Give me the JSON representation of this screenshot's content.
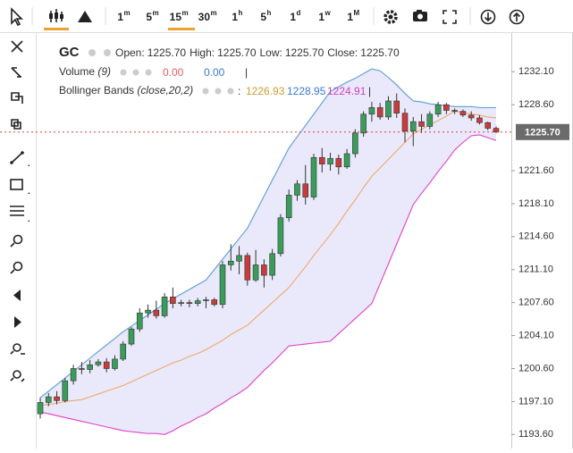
{
  "toolbar": {
    "timeframes": [
      {
        "num": "1",
        "unit": "m"
      },
      {
        "num": "5",
        "unit": "m"
      },
      {
        "num": "15",
        "unit": "m"
      },
      {
        "num": "30",
        "unit": "m"
      },
      {
        "num": "1",
        "unit": "h"
      },
      {
        "num": "5",
        "unit": "h"
      },
      {
        "num": "1",
        "unit": "d"
      },
      {
        "num": "1",
        "unit": "w"
      },
      {
        "num": "1",
        "unit": "M"
      }
    ],
    "active_timeframe": 2
  },
  "legend": {
    "symbol": "GC",
    "ohlc": [
      {
        "label": "Open:",
        "value": "1225.70"
      },
      {
        "label": "High:",
        "value": "1225.70"
      },
      {
        "label": "Low:",
        "value": "1225.70"
      },
      {
        "label": "Close:",
        "value": "1225.70"
      }
    ],
    "volume": {
      "name": "Volume",
      "params": "(9)",
      "values": [
        "0.00",
        "0.00"
      ],
      "separator": "|"
    },
    "bollinger": {
      "name": "Bollinger Bands",
      "params": "(close,20,2)",
      "values": [
        "1226.93",
        "1228.95",
        "1224.91"
      ],
      "separator": "|"
    }
  },
  "chart_data": {
    "type": "candlestick",
    "ylim": [
      1192.3,
      1236.3
    ],
    "yticks": [
      {
        "value": 1232.1,
        "label": "1232.10"
      },
      {
        "value": 1228.6,
        "label": "1228.60"
      },
      {
        "value": 1221.6,
        "label": "1221.60"
      },
      {
        "value": 1218.1,
        "label": "1218.10"
      },
      {
        "value": 1214.6,
        "label": "1214.60"
      },
      {
        "value": 1211.1,
        "label": "1211.10"
      },
      {
        "value": 1207.6,
        "label": "1207.60"
      },
      {
        "value": 1204.1,
        "label": "1204.10"
      },
      {
        "value": 1200.6,
        "label": "1200.60"
      },
      {
        "value": 1197.1,
        "label": "1197.10"
      },
      {
        "value": 1193.6,
        "label": "1193.60"
      }
    ],
    "last_price": {
      "value": 1225.7,
      "label": "1225.70",
      "color": "#e04040"
    },
    "up_color": "#3a9c5a",
    "down_color": "#c83c3c",
    "open": [
      1195.8,
      1197.0,
      1197.6,
      1197.2,
      1199.3,
      1200.6,
      1200.5,
      1201.0,
      1201.3,
      1200.6,
      1201.6,
      1203.2,
      1204.8,
      1206.5,
      1206.8,
      1206.2,
      1208.2,
      1207.5,
      1207.6,
      1207.5,
      1207.8,
      1207.9,
      1207.4,
      1211.6,
      1212.0,
      1212.6,
      1210.0,
      1211.6,
      1210.5,
      1212.8,
      1216.6,
      1219.0,
      1220.2,
      1218.8,
      1223.0,
      1222.3,
      1222.9,
      1222.0,
      1223.4,
      1225.6,
      1227.6,
      1228.3,
      1227.3,
      1229.0,
      1227.7,
      1225.8,
      1226.8,
      1226.3,
      1227.6,
      1228.6,
      1228.0,
      1227.9,
      1227.5,
      1227.2,
      1226.7,
      1226.1
    ],
    "high": [
      1197.5,
      1198.0,
      1198.2,
      1199.6,
      1201.0,
      1201.3,
      1201.5,
      1201.6,
      1201.7,
      1202.0,
      1203.5,
      1205.0,
      1207.0,
      1207.4,
      1207.8,
      1208.6,
      1209.2,
      1207.9,
      1207.9,
      1208.1,
      1208.2,
      1208.1,
      1212.0,
      1213.8,
      1213.6,
      1212.9,
      1213.2,
      1212.2,
      1213.3,
      1217.0,
      1219.6,
      1220.6,
      1222.2,
      1223.4,
      1224.0,
      1223.5,
      1223.3,
      1223.9,
      1226.0,
      1227.9,
      1228.9,
      1228.8,
      1229.5,
      1229.8,
      1228.2,
      1227.3,
      1227.6,
      1227.9,
      1228.9,
      1228.8,
      1228.2,
      1228.1,
      1227.9,
      1227.5,
      1226.8,
      1226.3
    ],
    "low": [
      1195.3,
      1196.6,
      1196.8,
      1197.0,
      1198.9,
      1200.0,
      1200.1,
      1200.8,
      1200.2,
      1200.4,
      1201.4,
      1203.0,
      1204.5,
      1206.0,
      1205.9,
      1206.0,
      1207.0,
      1207.2,
      1207.1,
      1207.2,
      1207.0,
      1207.2,
      1207.0,
      1211.0,
      1210.6,
      1209.4,
      1209.8,
      1209.2,
      1210.0,
      1212.5,
      1216.2,
      1218.4,
      1218.0,
      1218.5,
      1221.4,
      1221.6,
      1221.2,
      1221.8,
      1223.0,
      1225.2,
      1226.8,
      1227.0,
      1227.0,
      1227.2,
      1224.6,
      1224.2,
      1225.6,
      1226.0,
      1227.3,
      1227.6,
      1227.6,
      1227.3,
      1226.9,
      1226.5,
      1225.9,
      1225.6
    ],
    "close": [
      1197.0,
      1197.6,
      1197.2,
      1199.3,
      1200.6,
      1200.5,
      1201.0,
      1201.3,
      1200.6,
      1201.6,
      1203.2,
      1204.8,
      1206.5,
      1206.8,
      1206.2,
      1208.2,
      1207.5,
      1207.6,
      1207.5,
      1207.8,
      1207.9,
      1207.4,
      1211.6,
      1212.0,
      1212.6,
      1210.0,
      1211.6,
      1210.5,
      1212.8,
      1216.6,
      1219.0,
      1220.2,
      1218.8,
      1223.0,
      1222.3,
      1222.9,
      1222.0,
      1223.4,
      1225.6,
      1227.6,
      1228.3,
      1227.3,
      1229.0,
      1227.7,
      1225.8,
      1226.8,
      1226.3,
      1227.6,
      1228.6,
      1228.0,
      1227.9,
      1227.5,
      1227.2,
      1226.7,
      1226.1,
      1225.7
    ],
    "band_fill": "#e9e9fb",
    "series": [
      {
        "name": "upper",
        "color": "#5b9bd5",
        "values": [
          1197.5,
          1198.2,
          1198.9,
          1199.6,
          1200.3,
          1201.0,
          1201.7,
          1202.4,
          1203.1,
          1203.8,
          1204.5,
          1205.1,
          1205.7,
          1206.3,
          1206.9,
          1207.5,
          1208.0,
          1208.5,
          1209.0,
          1209.5,
          1210.0,
          1211.1,
          1212.2,
          1213.3,
          1214.4,
          1215.5,
          1217.2,
          1218.9,
          1220.6,
          1222.3,
          1224.0,
          1225.2,
          1226.4,
          1227.6,
          1228.8,
          1230.0,
          1230.5,
          1231.0,
          1231.4,
          1231.9,
          1232.4,
          1232.2,
          1231.5,
          1230.7,
          1229.8,
          1229.0,
          1228.9,
          1228.7,
          1228.6,
          1228.5,
          1228.4,
          1228.4,
          1228.4,
          1228.3,
          1228.3,
          1228.3
        ]
      },
      {
        "name": "middle",
        "color": "#f0a868",
        "values": [
          1196.7,
          1196.8,
          1196.9,
          1197.1,
          1197.2,
          1197.3,
          1197.6,
          1197.9,
          1198.2,
          1198.5,
          1198.8,
          1199.2,
          1199.6,
          1200.0,
          1200.4,
          1200.8,
          1201.2,
          1201.5,
          1201.9,
          1202.2,
          1202.6,
          1203.1,
          1203.6,
          1204.2,
          1204.7,
          1205.2,
          1206.0,
          1206.8,
          1207.6,
          1208.4,
          1209.2,
          1210.3,
          1211.4,
          1212.6,
          1213.7,
          1214.8,
          1216.0,
          1217.3,
          1218.5,
          1219.8,
          1221.0,
          1221.9,
          1222.8,
          1223.7,
          1224.6,
          1225.5,
          1226.0,
          1226.5,
          1226.9,
          1227.4,
          1227.9,
          1227.8,
          1227.6,
          1227.5,
          1227.3,
          1227.2
        ]
      },
      {
        "name": "lower",
        "color": "#e040c8",
        "values": [
          1196.0,
          1195.8,
          1195.6,
          1195.4,
          1195.2,
          1195.0,
          1194.8,
          1194.6,
          1194.4,
          1194.2,
          1194.0,
          1193.9,
          1193.8,
          1193.7,
          1193.7,
          1193.6,
          1194.0,
          1194.5,
          1194.9,
          1195.4,
          1195.8,
          1196.4,
          1196.9,
          1197.5,
          1198.0,
          1198.6,
          1199.5,
          1200.4,
          1201.2,
          1202.1,
          1203.0,
          1203.1,
          1203.2,
          1203.3,
          1203.4,
          1203.5,
          1204.3,
          1205.1,
          1205.9,
          1206.7,
          1207.5,
          1209.6,
          1211.7,
          1213.8,
          1215.9,
          1218.0,
          1219.2,
          1220.3,
          1221.5,
          1222.6,
          1223.8,
          1224.6,
          1225.3,
          1225.4,
          1225.1,
          1224.8
        ]
      }
    ]
  }
}
